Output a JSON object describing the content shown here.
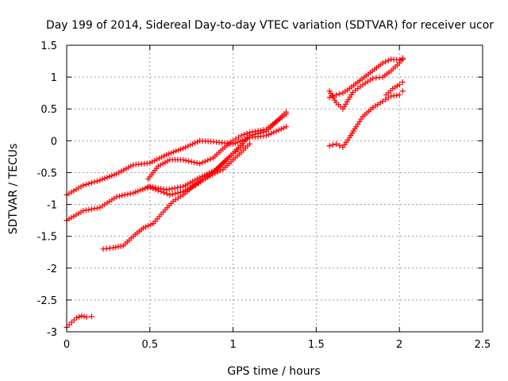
{
  "chart_data": {
    "type": "scatter",
    "title": "Day 199 of 2014, Sidereal Day-to-day VTEC variation (SDTVAR) for receiver ucor",
    "xlabel": "GPS time / hours",
    "ylabel": "SDTVAR / TECUs",
    "xlim": [
      0,
      2.5
    ],
    "ylim": [
      -3,
      1.5
    ],
    "xticks": [
      0,
      0.5,
      1,
      1.5,
      2,
      2.5
    ],
    "xtick_labels": [
      "0",
      "0.5",
      "1",
      "1.5",
      "2",
      "2.5"
    ],
    "yticks": [
      -3,
      -2.5,
      -2,
      -1.5,
      -1,
      -0.5,
      0,
      0.5,
      1,
      1.5
    ],
    "ytick_labels": [
      "-3",
      "-2.5",
      "-2",
      "-1.5",
      "-1",
      "-0.5",
      "0",
      "0.5",
      "1",
      "1.5"
    ],
    "grid": true,
    "legend": "none",
    "marker": "plus",
    "marker_color": "#ff0000",
    "series": [
      {
        "x": [
          0.0,
          0.1,
          0.2,
          0.3,
          0.4,
          0.5,
          0.6,
          0.7,
          0.8,
          0.9,
          1.0,
          1.1,
          1.2,
          1.32
        ],
        "y": [
          -0.85,
          -0.7,
          -0.62,
          -0.52,
          -0.38,
          -0.35,
          -0.22,
          -0.12,
          0.0,
          -0.02,
          -0.05,
          0.05,
          0.08,
          0.22
        ]
      },
      {
        "x": [
          0.0,
          0.1,
          0.2,
          0.3,
          0.4,
          0.5,
          0.6,
          0.7,
          0.8,
          0.9,
          1.0,
          1.1,
          1.2,
          1.32
        ],
        "y": [
          -1.25,
          -1.1,
          -1.05,
          -0.88,
          -0.82,
          -0.72,
          -0.77,
          -0.72,
          -0.58,
          -0.45,
          -0.2,
          0.08,
          0.15,
          0.45
        ]
      },
      {
        "x": [
          0.49,
          0.55,
          0.62,
          0.7,
          0.8,
          0.88,
          0.95,
          1.0,
          1.05,
          1.1,
          1.2,
          1.32
        ],
        "y": [
          -0.6,
          -0.4,
          -0.3,
          -0.3,
          -0.36,
          -0.27,
          -0.1,
          0.0,
          0.08,
          0.13,
          0.18,
          0.42
        ]
      },
      {
        "x": [
          0.49,
          0.55,
          0.62,
          0.7,
          0.78,
          0.86,
          0.94,
          1.0,
          1.05,
          1.1
        ],
        "y": [
          -0.72,
          -0.78,
          -0.85,
          -0.8,
          -0.68,
          -0.55,
          -0.45,
          -0.3,
          -0.18,
          -0.05
        ]
      },
      {
        "x": [
          0.22,
          0.28,
          0.34,
          0.4,
          0.46,
          0.52,
          0.58,
          0.64,
          0.7,
          0.76,
          0.82,
          0.88,
          0.94,
          1.0,
          1.06
        ],
        "y": [
          -1.7,
          -1.68,
          -1.65,
          -1.5,
          -1.37,
          -1.3,
          -1.12,
          -0.95,
          -0.85,
          -0.72,
          -0.62,
          -0.5,
          -0.35,
          -0.2,
          -0.08
        ]
      },
      {
        "x": [
          0.0,
          0.03,
          0.06,
          0.09,
          0.12,
          0.15
        ],
        "y": [
          -2.93,
          -2.85,
          -2.78,
          -2.75,
          -2.77,
          -2.76
        ]
      },
      {
        "x": [
          1.58,
          1.62,
          1.66,
          1.7,
          1.75,
          1.8,
          1.85,
          1.9,
          1.95,
          2.0,
          2.02
        ],
        "y": [
          0.68,
          0.72,
          0.75,
          0.82,
          0.92,
          1.02,
          1.12,
          1.22,
          1.28,
          1.27,
          1.28
        ]
      },
      {
        "x": [
          1.58,
          1.62,
          1.66,
          1.72,
          1.78,
          1.84,
          1.9,
          1.95,
          2.0,
          2.02
        ],
        "y": [
          0.78,
          0.6,
          0.5,
          0.76,
          0.88,
          0.98,
          1.0,
          1.1,
          1.22,
          1.3
        ]
      },
      {
        "x": [
          1.58,
          1.62,
          1.66,
          1.7,
          1.74,
          1.78,
          1.84,
          1.9,
          1.95,
          2.0,
          2.02
        ],
        "y": [
          -0.08,
          -0.05,
          -0.1,
          0.05,
          0.22,
          0.38,
          0.52,
          0.62,
          0.7,
          0.72,
          0.78
        ]
      },
      {
        "x": [
          1.92,
          1.96,
          2.0,
          2.02
        ],
        "y": [
          0.72,
          0.82,
          0.88,
          0.92
        ]
      }
    ]
  }
}
